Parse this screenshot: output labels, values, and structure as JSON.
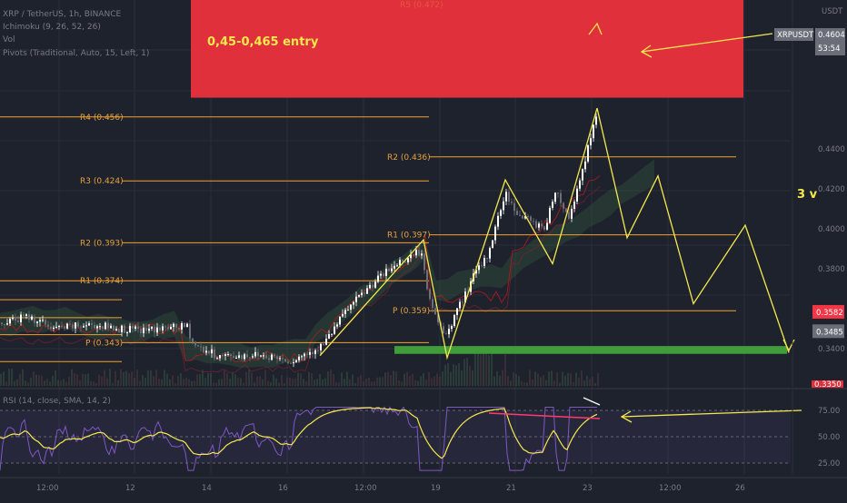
{
  "legend": {
    "symbol_line": "XRP / TetherUS, 1h, BINANCE",
    "ichimoku_line": "Ichimoku (9, 26, 52, 26)",
    "vol_line": "Vol",
    "pivots_line": "Pivots (Traditional, Auto, 15, Left, 1)"
  },
  "price_axis": {
    "currency": "USDT",
    "labels": [
      "0.4400",
      "0.4200",
      "0.4000",
      "0.3800",
      "0.3400"
    ],
    "clipped_bottom_label": "0.3350"
  },
  "tags": {
    "symbol": "XRPUSDT",
    "price": "0.4604",
    "countdown": "53:54",
    "red_level": "0.3582",
    "gray_level": "0.3485"
  },
  "annotations": {
    "entry_text": "0,45-0,465 entry",
    "wave_text": "3 v"
  },
  "pivot_labels": {
    "r5_faded": "R5 (0.472)",
    "r4": "R4 (0.456)",
    "r3": "R3 (0.424)",
    "r2_old": "R2 (0.393)",
    "r1_old": "R1 (0.374)",
    "p_old": "P (0.343)",
    "r2_new": "R2 (0.436)",
    "r1_new": "R1 (0.397)",
    "p_new": "P (0.359)"
  },
  "rsi": {
    "legend": "RSI (14, close, SMA, 14, 2)",
    "labels": [
      "75.00",
      "50.00",
      "25.00"
    ]
  },
  "time_axis": [
    "12:00",
    "12",
    "14",
    "16",
    "12:00",
    "19",
    "21",
    "23",
    "12:00",
    "26"
  ],
  "colors": {
    "background": "#1e222d",
    "pivot": "#f0a030",
    "annotation": "#f5e84d",
    "support_zone": "#3f9e3a",
    "resistance_zone": "#e0303c",
    "candle_up": "#ffffff",
    "candle_down": "#6e6e78",
    "rsi_line": "#7e57c2",
    "rsi_ma": "#f5e84d"
  },
  "chart_data": {
    "type": "line",
    "symbol": "XRP / TetherUS",
    "interval": "1h",
    "exchange": "BINANCE",
    "price_ylim": [
      0.3316,
      0.4764
    ],
    "last_price": 0.4604,
    "zones": {
      "support": [
        0.3374,
        0.3413
      ],
      "resistance_top": 0.472
    },
    "pivot_levels": [
      {
        "label": "R4",
        "value": 0.456
      },
      {
        "label": "R3",
        "value": 0.424
      },
      {
        "label": "R2",
        "value": 0.393
      },
      {
        "label": "R1",
        "value": 0.374
      },
      {
        "label": "P",
        "value": 0.343
      },
      {
        "label": "R2",
        "value": 0.436
      },
      {
        "label": "R1",
        "value": 0.397
      },
      {
        "label": "P",
        "value": 0.359
      }
    ],
    "projected_path": [
      0.3945,
      0.3485,
      0.4245,
      0.3825,
      0.4604,
      0.3955,
      0.4265,
      0.3947,
      0.4198,
      0.3628,
      0.4018,
      0.338
    ],
    "rsi_ylim": [
      15,
      80
    ],
    "rsi_levels": [
      75,
      50,
      25
    ]
  }
}
